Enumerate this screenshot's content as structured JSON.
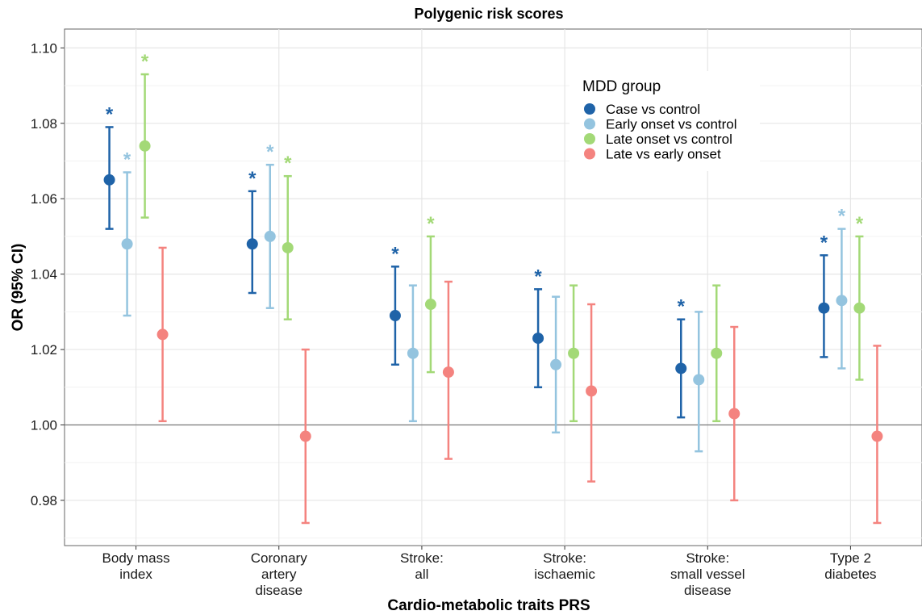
{
  "chart_data": {
    "type": "errorbar",
    "title": "Polygenic risk scores",
    "xlabel": "Cardio-metabolic traits PRS",
    "ylabel": "OR (95% CI)",
    "ylim": [
      0.968,
      1.105
    ],
    "yticks": [
      "0.98",
      "1.00",
      "1.02",
      "1.04",
      "1.06",
      "1.08",
      "1.10"
    ],
    "ytick_values": [
      0.98,
      1.0,
      1.02,
      1.04,
      1.06,
      1.08,
      1.1
    ],
    "reference_line": 1.0,
    "grid": true,
    "legend_title": "MDD group",
    "legend_position": "top-right",
    "categories": [
      [
        "Body mass",
        "index"
      ],
      [
        "Coronary",
        "artery",
        "disease"
      ],
      [
        "Stroke:",
        "all"
      ],
      [
        "Stroke:",
        "ischaemic"
      ],
      [
        "Stroke:",
        "small vessel",
        "disease"
      ],
      [
        "Type 2",
        "diabetes"
      ]
    ],
    "series": [
      {
        "name": "Case vs control",
        "color": "#1f63a8",
        "or": [
          1.065,
          1.048,
          1.029,
          1.023,
          1.015,
          1.031
        ],
        "lower": [
          1.052,
          1.035,
          1.016,
          1.01,
          1.002,
          1.018
        ],
        "upper": [
          1.079,
          1.062,
          1.042,
          1.036,
          1.028,
          1.045
        ],
        "significant": [
          true,
          true,
          true,
          true,
          true,
          true
        ]
      },
      {
        "name": "Early onset vs control",
        "color": "#94c4df",
        "or": [
          1.048,
          1.05,
          1.019,
          1.016,
          1.012,
          1.033
        ],
        "lower": [
          1.029,
          1.031,
          1.001,
          0.998,
          0.993,
          1.015
        ],
        "upper": [
          1.067,
          1.069,
          1.037,
          1.034,
          1.03,
          1.052
        ],
        "significant": [
          true,
          true,
          false,
          false,
          false,
          true
        ]
      },
      {
        "name": "Late onset vs control",
        "color": "#a3d977",
        "or": [
          1.074,
          1.047,
          1.032,
          1.019,
          1.019,
          1.031
        ],
        "lower": [
          1.055,
          1.028,
          1.014,
          1.001,
          1.001,
          1.012
        ],
        "upper": [
          1.093,
          1.066,
          1.05,
          1.037,
          1.037,
          1.05
        ],
        "significant": [
          true,
          true,
          true,
          false,
          false,
          true
        ]
      },
      {
        "name": "Late vs early onset",
        "color": "#f4837f",
        "or": [
          1.024,
          0.997,
          1.014,
          1.009,
          1.003,
          0.997
        ],
        "lower": [
          1.001,
          0.974,
          0.991,
          0.985,
          0.98,
          0.974
        ],
        "upper": [
          1.047,
          1.02,
          1.038,
          1.032,
          1.026,
          1.021
        ],
        "significant": [
          false,
          false,
          false,
          false,
          false,
          false
        ]
      }
    ],
    "significance_marker": "*"
  }
}
